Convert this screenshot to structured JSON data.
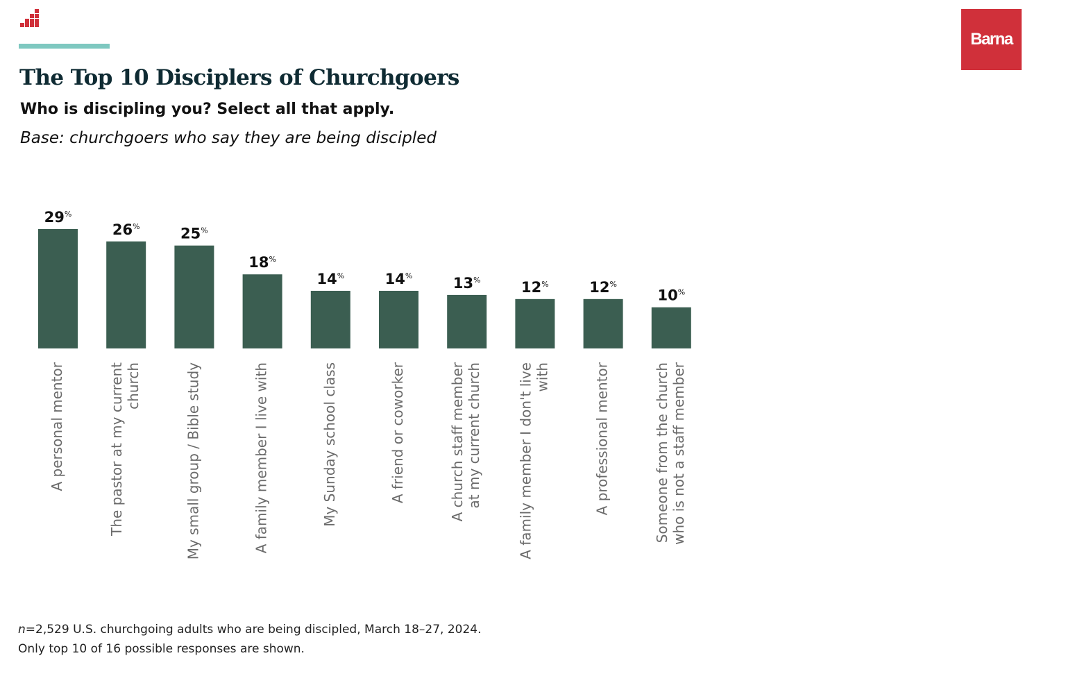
{
  "header": {
    "title": "The Top 10 Disciplers of Churchgoers",
    "question": "Who is discipling you? Select all that apply.",
    "base": "Base: churchgoers who say they are being discipled"
  },
  "brand": {
    "logo_text": "Barna",
    "logo_color": "#d0303a"
  },
  "colors": {
    "bar": "#3b5e51",
    "accent_rule": "#7ec8c0",
    "title": "#0f2b33",
    "axis_label": "#6b6b6b"
  },
  "chart_data": {
    "type": "bar",
    "categories": [
      "A personal mentor",
      "The pastor at my current church",
      "My small group / Bible study",
      "A family member I live with",
      "My Sunday school class",
      "A friend or coworker",
      "A church staff member at my current church",
      "A family member I don't live with",
      "A professional mentor",
      "Someone from the church who is not a staff member"
    ],
    "category_lines": [
      [
        "A personal mentor"
      ],
      [
        "The pastor at my current",
        "church"
      ],
      [
        "My small group / Bible study"
      ],
      [
        "A family member I live with"
      ],
      [
        "My Sunday school class"
      ],
      [
        "A friend or coworker"
      ],
      [
        "A church staff member",
        "at my current church"
      ],
      [
        "A family member I don't live",
        "with"
      ],
      [
        "A professional mentor"
      ],
      [
        "Someone from the church",
        "who is not a staff member"
      ]
    ],
    "values": [
      29,
      26,
      25,
      18,
      14,
      14,
      13,
      12,
      12,
      10
    ],
    "value_unit": "%",
    "ylim": [
      0,
      29
    ],
    "grid": false,
    "legend": "none"
  },
  "footnote": {
    "n_prefix": "n",
    "line1_rest": "=2,529 U.S. churchgoing adults who are being discipled, March 18–27, 2024.",
    "line2": "Only top 10 of 16 possible responses are shown."
  }
}
